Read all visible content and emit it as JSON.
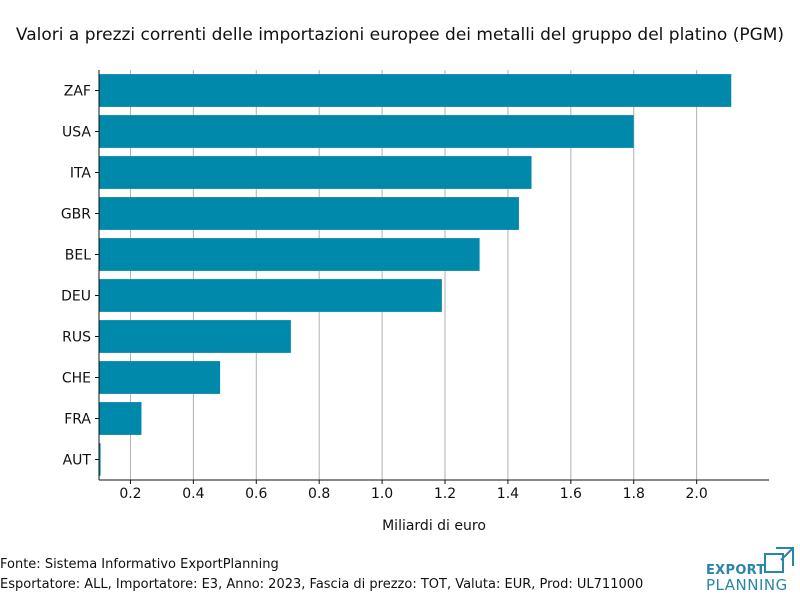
{
  "chart_data": {
    "type": "bar",
    "orientation": "horizontal",
    "title": "Valori a prezzi correnti delle importazioni europee dei metalli del gruppo del platino (PGM)",
    "xlabel": "Miliardi di euro",
    "ylabel": "",
    "categories": [
      "ZAF",
      "USA",
      "ITA",
      "GBR",
      "BEL",
      "DEU",
      "RUS",
      "CHE",
      "FRA",
      "AUT"
    ],
    "values": [
      2.11,
      1.8,
      1.475,
      1.435,
      1.31,
      1.19,
      0.71,
      0.485,
      0.235,
      0.105
    ],
    "xlim": [
      0.1,
      2.23
    ],
    "xticks": [
      0.2,
      0.4,
      0.6,
      0.8,
      1.0,
      1.2,
      1.4,
      1.6,
      1.8,
      2.0
    ],
    "xtick_labels": [
      "0.2",
      "0.4",
      "0.6",
      "0.8",
      "1.0",
      "1.2",
      "1.4",
      "1.6",
      "1.8",
      "2.0"
    ],
    "grid": "vertical",
    "bar_color": "#0089ab"
  },
  "footer": {
    "source": "Fonte: Sistema Informativo ExportPlanning",
    "details": "Esportatore: ALL, Importatore: E3, Anno: 2023, Fascia di prezzo: TOT, Valuta: EUR, Prod: UL711000"
  },
  "logo": {
    "line1": "EXPORT",
    "line2": "PLANNING",
    "color": "#2a86a8"
  }
}
